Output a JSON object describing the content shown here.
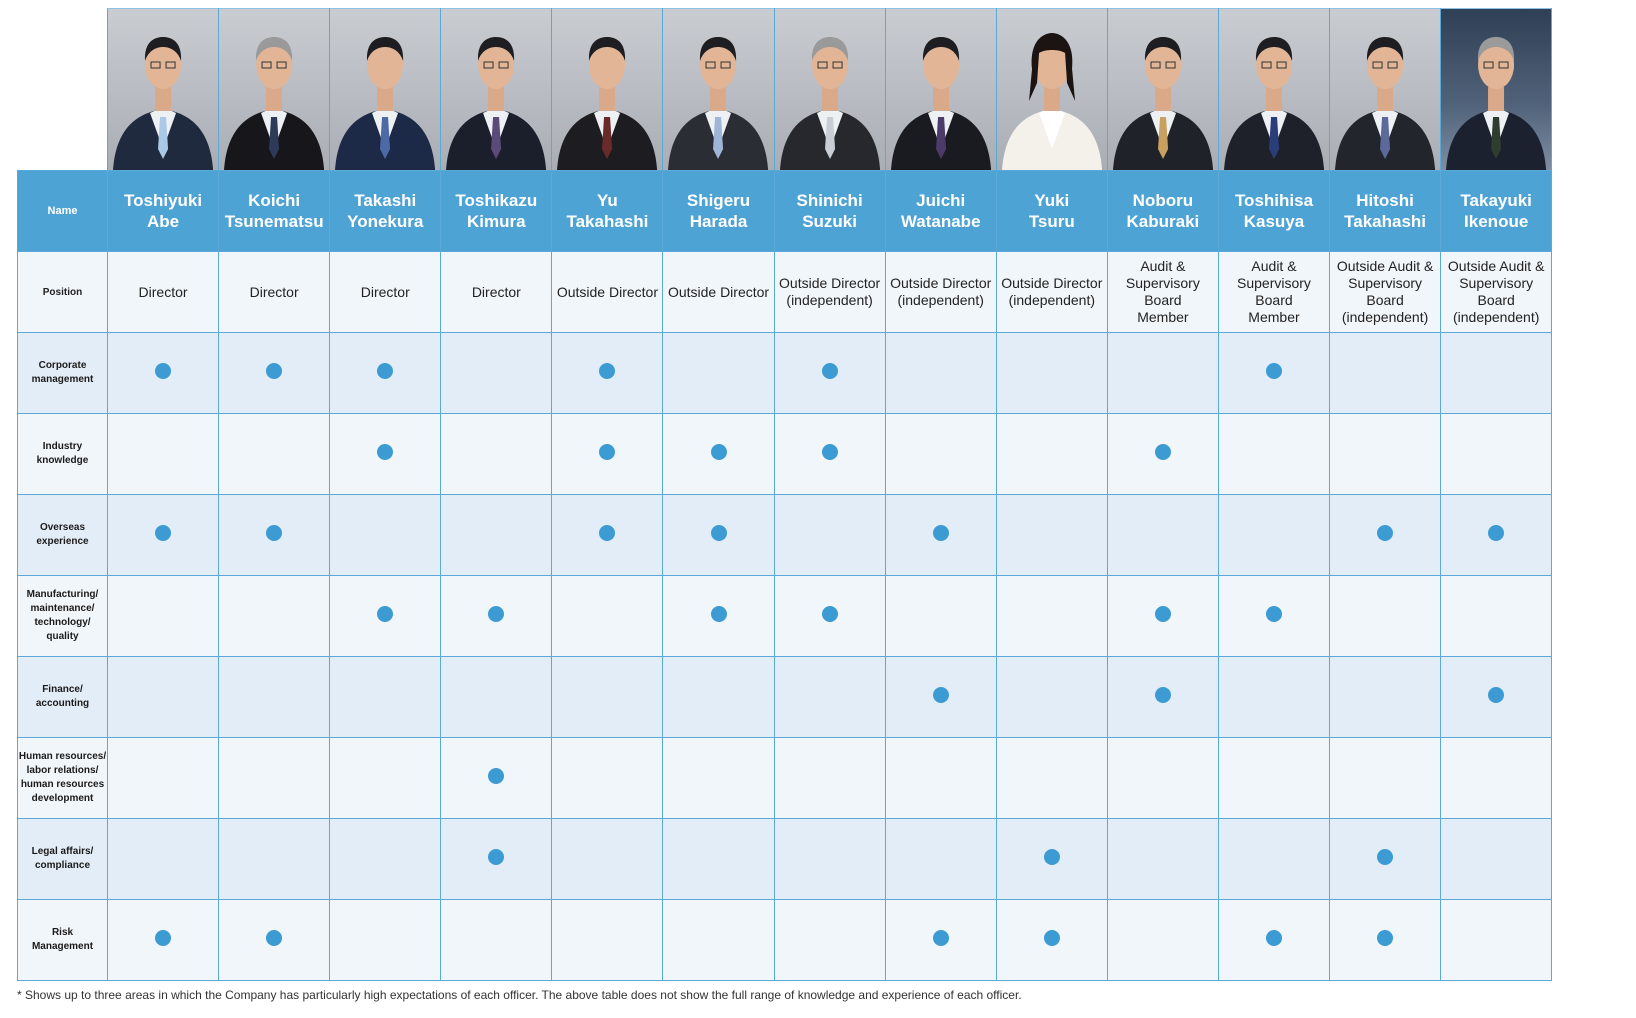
{
  "table": {
    "label_name": "Name",
    "label_position": "Position",
    "officers": [
      {
        "first": "Toshiyuki",
        "last": "Abe",
        "position": "Director"
      },
      {
        "first": "Koichi",
        "last": "Tsunematsu",
        "position": "Director"
      },
      {
        "first": "Takashi",
        "last": "Yonekura",
        "position": "Director"
      },
      {
        "first": "Toshikazu",
        "last": "Kimura",
        "position": "Director"
      },
      {
        "first": "Yu",
        "last": "Takahashi",
        "position": "Outside Director"
      },
      {
        "first": "Shigeru",
        "last": "Harada",
        "position": "Outside Director"
      },
      {
        "first": "Shinichi",
        "last": "Suzuki",
        "position": "Outside Director\n(independent)"
      },
      {
        "first": "Juichi",
        "last": "Watanabe",
        "position": "Outside Director\n(independent)"
      },
      {
        "first": "Yuki",
        "last": "Tsuru",
        "position": "Outside Director\n(independent)"
      },
      {
        "first": "Noboru",
        "last": "Kaburaki",
        "position": "Audit &\nSupervisory Board\nMember"
      },
      {
        "first": "Toshihisa",
        "last": "Kasuya",
        "position": "Audit &\nSupervisory Board\nMember"
      },
      {
        "first": "Hitoshi",
        "last": "Takahashi",
        "position": "Outside Audit &\nSupervisory Board\n(independent)"
      },
      {
        "first": "Takayuki",
        "last": "Ikenoue",
        "position": "Outside Audit &\nSupervisory Board\n(independent)"
      }
    ],
    "skills": [
      {
        "label": "Corporate\nmanagement",
        "marks": [
          1,
          1,
          1,
          0,
          1,
          0,
          1,
          0,
          0,
          0,
          1,
          0,
          0
        ]
      },
      {
        "label": "Industry\nknowledge",
        "marks": [
          0,
          0,
          1,
          0,
          1,
          1,
          1,
          0,
          0,
          1,
          0,
          0,
          0
        ]
      },
      {
        "label": "Overseas\nexperience",
        "marks": [
          1,
          1,
          0,
          0,
          1,
          1,
          0,
          1,
          0,
          0,
          0,
          1,
          1
        ]
      },
      {
        "label": "Manufacturing/\nmaintenance/\ntechnology/\nquality",
        "marks": [
          0,
          0,
          1,
          1,
          0,
          1,
          1,
          0,
          0,
          1,
          1,
          0,
          0
        ]
      },
      {
        "label": "Finance/\naccounting",
        "marks": [
          0,
          0,
          0,
          0,
          0,
          0,
          0,
          1,
          0,
          1,
          0,
          0,
          1
        ]
      },
      {
        "label": "Human resources/\nlabor relations/\nhuman resources\ndevelopment",
        "marks": [
          0,
          0,
          0,
          1,
          0,
          0,
          0,
          0,
          0,
          0,
          0,
          0,
          0
        ]
      },
      {
        "label": "Legal affairs/\ncompliance",
        "marks": [
          0,
          0,
          0,
          1,
          0,
          0,
          0,
          0,
          1,
          0,
          0,
          1,
          0
        ]
      },
      {
        "label": "Risk\nManagement",
        "marks": [
          1,
          1,
          0,
          0,
          0,
          0,
          0,
          1,
          1,
          0,
          1,
          1,
          0
        ]
      }
    ]
  },
  "colors": {
    "header_blue": "#4ea3d5",
    "dot_blue": "#3d9bd3",
    "border": "#5aa9d6",
    "row_light": "#f1f6fb",
    "row_dark": "#e3edf7"
  },
  "icons": {
    "portrait": "person-portrait-icon",
    "mark": "filled-circle-icon"
  },
  "footnote": "* Shows up to three areas in which the Company has particularly high expectations of each officer. The above table does not show the full range of knowledge and experience of each officer."
}
